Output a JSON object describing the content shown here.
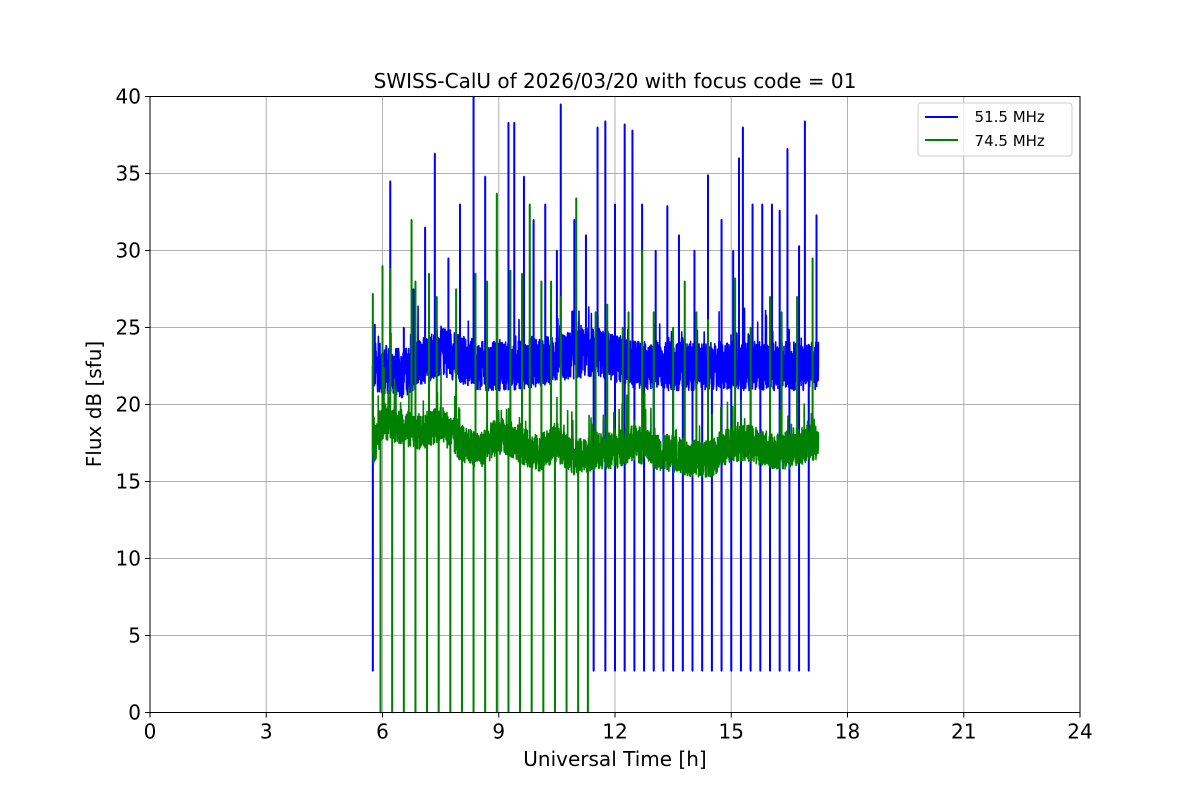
{
  "chart_data": {
    "type": "line",
    "title": "SWISS-CalU of 2026/03/20 with focus code = 01",
    "xlabel": "Universal Time [h]",
    "ylabel": "Flux dB [sfu]",
    "xlim": [
      0,
      24
    ],
    "ylim": [
      0,
      40
    ],
    "x_ticks": [
      0,
      3,
      6,
      9,
      12,
      15,
      18,
      21,
      24
    ],
    "y_ticks": [
      0,
      5,
      10,
      15,
      20,
      25,
      30,
      35,
      40
    ],
    "grid": true,
    "legend_position": "top-right",
    "x_range_observed": [
      5.75,
      17.25
    ],
    "series": [
      {
        "name": "  51.5 MHz",
        "color": "#0000ff",
        "baseline": [
          [
            5.75,
            22.5
          ],
          [
            6.5,
            22.0
          ],
          [
            7.5,
            23.5
          ],
          [
            8.5,
            22.5
          ],
          [
            9.5,
            22.5
          ],
          [
            10.5,
            23.0
          ],
          [
            11.5,
            23.5
          ],
          [
            12.5,
            22.5
          ],
          [
            13.5,
            22.5
          ],
          [
            14.5,
            22.5
          ],
          [
            15.5,
            22.5
          ],
          [
            16.5,
            22.5
          ],
          [
            17.2,
            22.5
          ]
        ],
        "noise": 1.6,
        "spikes": [
          [
            5.8,
            25.2
          ],
          [
            6.2,
            34.5
          ],
          [
            6.55,
            25.0
          ],
          [
            6.8,
            27.5
          ],
          [
            7.1,
            31.5
          ],
          [
            7.35,
            36.3
          ],
          [
            7.7,
            29.5
          ],
          [
            8.0,
            33.0
          ],
          [
            8.35,
            40.0
          ],
          [
            8.65,
            34.8
          ],
          [
            8.95,
            30.0
          ],
          [
            9.25,
            38.3
          ],
          [
            9.4,
            38.3
          ],
          [
            9.65,
            34.8
          ],
          [
            9.9,
            32.0
          ],
          [
            10.2,
            33.0
          ],
          [
            10.5,
            30.0
          ],
          [
            10.6,
            39.5
          ],
          [
            10.95,
            32.0
          ],
          [
            11.25,
            31.0
          ],
          [
            11.55,
            38.0
          ],
          [
            11.75,
            38.4
          ],
          [
            12.0,
            33.0
          ],
          [
            12.25,
            38.2
          ],
          [
            12.45,
            37.8
          ],
          [
            12.7,
            33.0
          ],
          [
            13.05,
            30.0
          ],
          [
            13.35,
            32.9
          ],
          [
            13.65,
            31.0
          ],
          [
            14.05,
            30.0
          ],
          [
            14.4,
            34.9
          ],
          [
            14.75,
            32.0
          ],
          [
            15.05,
            30.0
          ],
          [
            15.2,
            36.0
          ],
          [
            15.3,
            38.0
          ],
          [
            15.55,
            33.0
          ],
          [
            15.8,
            33.0
          ],
          [
            16.05,
            33.0
          ],
          [
            16.25,
            32.6
          ],
          [
            16.45,
            36.6
          ],
          [
            16.75,
            30.3
          ],
          [
            16.9,
            38.4
          ],
          [
            17.2,
            32.3
          ]
        ],
        "dips": [
          5.75,
          11.45,
          11.75,
          12.0,
          12.25,
          12.5,
          12.75,
          13.0,
          13.25,
          13.5,
          13.75,
          14.0,
          14.25,
          14.5,
          14.75,
          15.0,
          15.25,
          15.5,
          15.75,
          16.0,
          16.25,
          16.5,
          16.75,
          17.0
        ],
        "dip_min": 2.7
      },
      {
        "name": "  74.5 MHz",
        "color": "#008000",
        "baseline": [
          [
            5.75,
            17.0
          ],
          [
            6.0,
            19.0
          ],
          [
            6.5,
            18.5
          ],
          [
            7.0,
            18.2
          ],
          [
            7.5,
            18.8
          ],
          [
            8.0,
            17.5
          ],
          [
            8.5,
            17.0
          ],
          [
            9.0,
            18.0
          ],
          [
            9.5,
            17.5
          ],
          [
            10.0,
            16.8
          ],
          [
            10.5,
            17.5
          ],
          [
            11.0,
            16.5
          ],
          [
            11.5,
            17.0
          ],
          [
            12.0,
            17.0
          ],
          [
            12.5,
            17.5
          ],
          [
            13.0,
            17.0
          ],
          [
            13.5,
            16.8
          ],
          [
            14.0,
            16.5
          ],
          [
            14.5,
            16.5
          ],
          [
            15.0,
            17.5
          ],
          [
            15.5,
            17.5
          ],
          [
            16.0,
            17.0
          ],
          [
            16.5,
            17.0
          ],
          [
            17.0,
            17.5
          ],
          [
            17.25,
            17.5
          ]
        ],
        "noise": 1.2,
        "spikes": [
          [
            5.75,
            27.2
          ],
          [
            6.0,
            29.0
          ],
          [
            6.2,
            28.8
          ],
          [
            6.75,
            32.0
          ],
          [
            6.85,
            28.0
          ],
          [
            7.2,
            28.5
          ],
          [
            7.4,
            27.0
          ],
          [
            7.9,
            27.5
          ],
          [
            8.4,
            28.5
          ],
          [
            8.7,
            28.0
          ],
          [
            8.95,
            33.7
          ],
          [
            9.3,
            28.7
          ],
          [
            9.6,
            28.5
          ],
          [
            9.8,
            33.0
          ],
          [
            10.1,
            28.0
          ],
          [
            10.35,
            28.0
          ],
          [
            10.6,
            27.0
          ],
          [
            11.0,
            33.4
          ],
          [
            11.5,
            26.0
          ],
          [
            11.8,
            26.5
          ],
          [
            12.2,
            25.0
          ],
          [
            12.35,
            26.0
          ],
          [
            12.7,
            30.0
          ],
          [
            13.0,
            26.0
          ],
          [
            13.5,
            25.0
          ],
          [
            13.8,
            28.0
          ],
          [
            14.1,
            26.0
          ],
          [
            14.4,
            25.5
          ],
          [
            15.1,
            28.2
          ],
          [
            15.5,
            25.0
          ],
          [
            16.0,
            27.0
          ],
          [
            16.3,
            26.0
          ],
          [
            16.7,
            27.0
          ],
          [
            17.1,
            29.5
          ]
        ],
        "dips": [
          5.95,
          6.25,
          6.55,
          6.85,
          7.15,
          7.45,
          7.75,
          8.05,
          8.35,
          8.65,
          8.95,
          9.25,
          9.55,
          9.85,
          10.15,
          10.45,
          10.75,
          11.05,
          11.3
        ],
        "dip_min": 0.0
      }
    ]
  }
}
